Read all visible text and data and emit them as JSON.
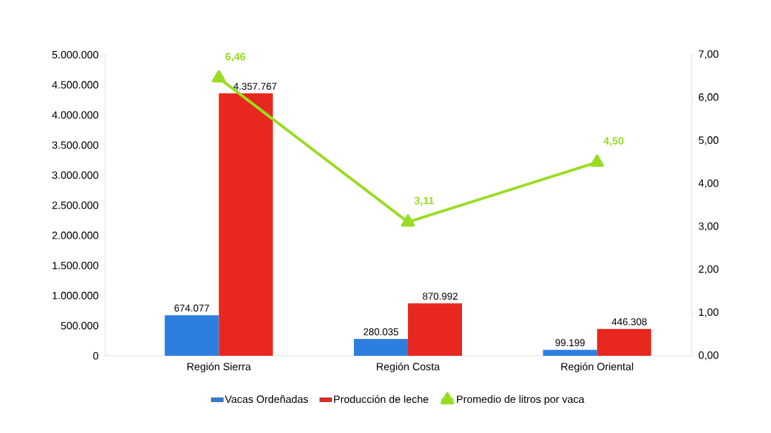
{
  "chart_data": {
    "type": "bar",
    "categories": [
      "Región Sierra",
      "Región Costa",
      "Región Oriental"
    ],
    "series": [
      {
        "name": "Vacas Ordeñadas",
        "color": "#2e7ee0",
        "values": [
          674077,
          280035,
          99199
        ],
        "value_labels": [
          "674.077",
          "280.035",
          "99.199"
        ]
      },
      {
        "name": "Producción de leche",
        "color": "#e8281e",
        "values": [
          4357767,
          870992,
          446308
        ],
        "value_labels": [
          "4.357.767",
          "870.992",
          "446.308"
        ]
      },
      {
        "name": "Promedio de litros por vaca",
        "type": "line",
        "axis": "y2",
        "color": "#99dd22",
        "marker": "triangle",
        "line_style": "solid",
        "values": [
          6.46,
          3.11,
          4.5
        ],
        "value_labels": [
          "6,46",
          "3,11",
          "4,50"
        ]
      }
    ],
    "ylim": [
      0,
      5000000
    ],
    "yticks": [
      {
        "value": 0,
        "label": "0"
      },
      {
        "value": 500000,
        "label": "500.000"
      },
      {
        "value": 1000000,
        "label": "1.000.000"
      },
      {
        "value": 1500000,
        "label": "1.500.000"
      },
      {
        "value": 2000000,
        "label": "2.000.000"
      },
      {
        "value": 2500000,
        "label": "2.500.000"
      },
      {
        "value": 3000000,
        "label": "3.000.000"
      },
      {
        "value": 3500000,
        "label": "3.500.000"
      },
      {
        "value": 4000000,
        "label": "4.000.000"
      },
      {
        "value": 4500000,
        "label": "4.500.000"
      },
      {
        "value": 5000000,
        "label": "5.000.000"
      }
    ],
    "y2lim": [
      0,
      7
    ],
    "y2ticks": [
      {
        "value": 0,
        "label": "0,00"
      },
      {
        "value": 1,
        "label": "1,00"
      },
      {
        "value": 2,
        "label": "2,00"
      },
      {
        "value": 3,
        "label": "3,00"
      },
      {
        "value": 4,
        "label": "4,00"
      },
      {
        "value": 5,
        "label": "5,00"
      },
      {
        "value": 6,
        "label": "6,00"
      },
      {
        "value": 7,
        "label": "7,00"
      }
    ],
    "grid": false,
    "legend": "bottom"
  }
}
